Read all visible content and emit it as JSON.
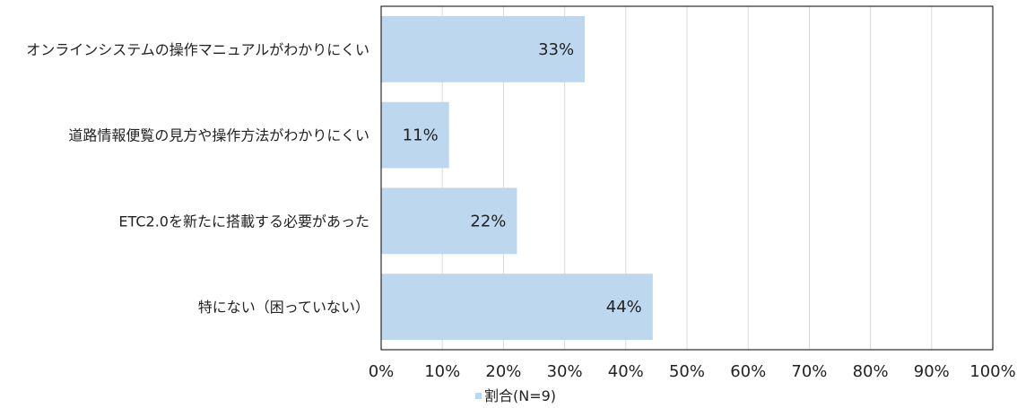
{
  "chart_data": {
    "type": "bar",
    "orientation": "horizontal",
    "categories": [
      "オンラインシステムの操作マニュアルがわかりにくい",
      "道路情報便覧の見方や操作方法がわかりにくい",
      "ETC2.0を新たに搭載する必要があった",
      "特にない（困っていない）"
    ],
    "series": [
      {
        "name": "割合(N=9)",
        "values": [
          33.3,
          11.1,
          22.2,
          44.4
        ]
      }
    ],
    "data_labels": [
      "33%",
      "11%",
      "22%",
      "44%"
    ],
    "x_ticks": [
      "0%",
      "10%",
      "20%",
      "30%",
      "40%",
      "50%",
      "60%",
      "70%",
      "80%",
      "90%",
      "100%"
    ],
    "xlim": [
      0,
      100
    ],
    "grid": true,
    "legend_position": "bottom",
    "colors": {
      "bar": "#bdd7ee",
      "grid": "#d9d9d9",
      "axis": "#000000"
    }
  }
}
